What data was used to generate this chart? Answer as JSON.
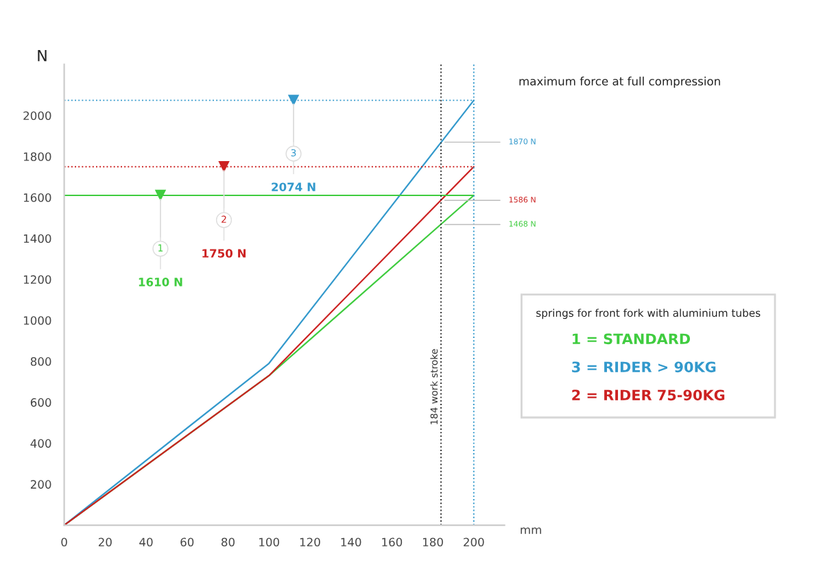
{
  "chart_data": {
    "type": "line",
    "xlabel": "mm",
    "ylabel": "N",
    "legend_title": "springs for front fork with aluminium tubes",
    "x": [
      0,
      100,
      200
    ],
    "series": [
      {
        "name": "1 = STANDARD",
        "color": "#3fcc3f",
        "values": [
          0,
          730,
          1610
        ]
      },
      {
        "name": "3 = RIDER > 90KG",
        "color": "#3399cc",
        "values": [
          0,
          790,
          2074
        ]
      },
      {
        "name": "2 = RIDER 75-90KG",
        "color": "#cc2222",
        "values": [
          0,
          730,
          1750
        ]
      },
      {
        "type": "scatter",
        "marker": "triangle",
        "color": "#3fcc3f",
        "x": [
          47
        ],
        "values": [
          1610
        ]
      },
      {
        "type": "scatter",
        "marker": "triangle",
        "color": "#cc2222",
        "x": [
          78
        ],
        "values": [
          1750
        ]
      },
      {
        "type": "scatter",
        "marker": "triangle",
        "color": "#3399cc",
        "x": [
          112
        ],
        "values": [
          2074
        ]
      }
    ],
    "xlim": [
      0,
      215
    ],
    "ylim": [
      0,
      2250
    ],
    "xticks": [
      0,
      20,
      40,
      60,
      80,
      100,
      120,
      140,
      160,
      180,
      200
    ],
    "yticks": [
      200,
      400,
      600,
      800,
      1000,
      1200,
      1400,
      1600,
      1800,
      2000
    ],
    "ref_lines": [
      {
        "axis": "y",
        "value": 2074,
        "color": "#3399cc",
        "line_style": "dotted"
      },
      {
        "axis": "y",
        "value": 1750,
        "color": "#cc2222",
        "line_style": "dotted"
      },
      {
        "axis": "y",
        "value": 1610,
        "color": "#3fcc3f",
        "line_style": "solid"
      },
      {
        "axis": "x",
        "value": 184,
        "label": "184 work stroke",
        "color": "#333333",
        "line_style": "dotted"
      },
      {
        "axis": "x",
        "value": 200,
        "color": "#3399cc",
        "line_style": "dotted"
      }
    ],
    "annotations": [
      "maximum force at full compression",
      {
        "text": "1",
        "x": 47,
        "y": 1610
      },
      {
        "text": "1610 N",
        "x": 47,
        "y": 1610
      },
      {
        "text": "2",
        "x": 78,
        "y": 1750
      },
      {
        "text": "1750 N",
        "x": 78,
        "y": 1750
      },
      {
        "text": "3",
        "x": 112,
        "y": 2074
      },
      {
        "text": "2074 N",
        "x": 112,
        "y": 2074
      },
      {
        "text": "1870 N",
        "x": 184,
        "y": 1870
      },
      {
        "text": "1586 N",
        "x": 184,
        "y": 1586
      },
      {
        "text": "1468 N",
        "x": 184,
        "y": 1468
      }
    ],
    "legend": "right",
    "grid": false
  }
}
